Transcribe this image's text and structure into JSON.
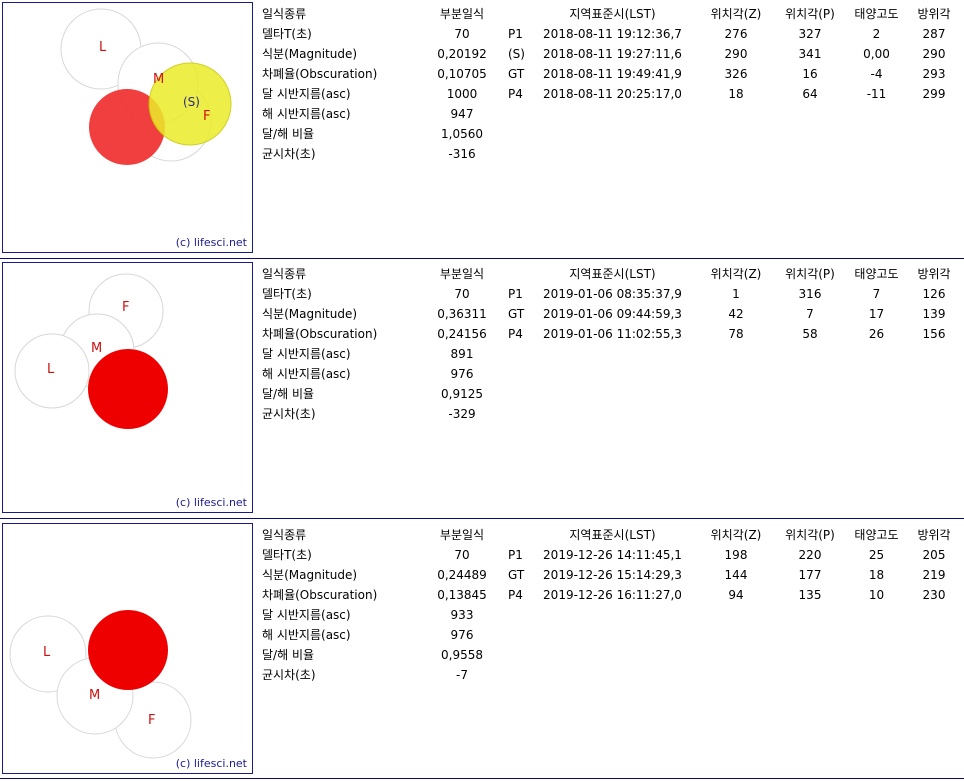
{
  "colors": {
    "moon_red": "#ee0000",
    "moon_red_light": "#f03434",
    "sun_yellow": "#ecec2a",
    "frame": "#1a1a8c",
    "outline": "#d7d7d7",
    "label": "#d01010"
  },
  "headers": {
    "label_col": "일식종류",
    "value_col": "부분일식",
    "time_col": "지역표준시(LST)",
    "z_col": "위치각(Z)",
    "p_col": "위치각(P)",
    "alt_col": "태양고도",
    "az_col": "방위각"
  },
  "row_labels": [
    "델타T(초)",
    "식분(Magnitude)",
    "차폐율(Obscuration)",
    "달 시반지름(asc)",
    "해 시반지름(asc)",
    "달/해 비율",
    "균시차(초)"
  ],
  "credit": "(c) lifesci.net",
  "eclipses": [
    {
      "values": [
        "70",
        "0,20192",
        "0,10705",
        "1000",
        "947",
        "1,0560",
        "-316"
      ],
      "contacts": [
        {
          "code": "P1",
          "time": "2018-08-11 19:12:36,7",
          "z": "276",
          "p": "327",
          "alt": "2",
          "az": "287"
        },
        {
          "code": "(S)",
          "time": "2018-08-11 19:27:11,6",
          "z": "290",
          "p": "341",
          "alt": "0,00",
          "az": "290"
        },
        {
          "code": "GT",
          "time": "2018-08-11 19:49:41,9",
          "z": "326",
          "p": "16",
          "alt": "-4",
          "az": "293"
        },
        {
          "code": "P4",
          "time": "2018-08-11 20:25:17,0",
          "z": "18",
          "p": "64",
          "alt": "-11",
          "az": "299"
        }
      ],
      "diagram": {
        "labels": {
          "L": "L",
          "M": "M",
          "F": "F",
          "S": "(S)"
        }
      }
    },
    {
      "values": [
        "70",
        "0,36311",
        "0,24156",
        "891",
        "976",
        "0,9125",
        "-329"
      ],
      "contacts": [
        {
          "code": "P1",
          "time": "2019-01-06 08:35:37,9",
          "z": "1",
          "p": "316",
          "alt": "7",
          "az": "126"
        },
        {
          "code": "GT",
          "time": "2019-01-06 09:44:59,3",
          "z": "42",
          "p": "7",
          "alt": "17",
          "az": "139"
        },
        {
          "code": "P4",
          "time": "2019-01-06 11:02:55,3",
          "z": "78",
          "p": "58",
          "alt": "26",
          "az": "156"
        }
      ],
      "diagram": {
        "labels": {
          "L": "L",
          "M": "M",
          "F": "F"
        }
      }
    },
    {
      "values": [
        "70",
        "0,24489",
        "0,13845",
        "933",
        "976",
        "0,9558",
        "-7"
      ],
      "contacts": [
        {
          "code": "P1",
          "time": "2019-12-26 14:11:45,1",
          "z": "198",
          "p": "220",
          "alt": "25",
          "az": "205"
        },
        {
          "code": "GT",
          "time": "2019-12-26 15:14:29,3",
          "z": "144",
          "p": "177",
          "alt": "18",
          "az": "219"
        },
        {
          "code": "P4",
          "time": "2019-12-26 16:11:27,0",
          "z": "94",
          "p": "135",
          "alt": "10",
          "az": "230"
        }
      ],
      "diagram": {
        "labels": {
          "L": "L",
          "M": "M",
          "F": "F"
        }
      }
    }
  ]
}
